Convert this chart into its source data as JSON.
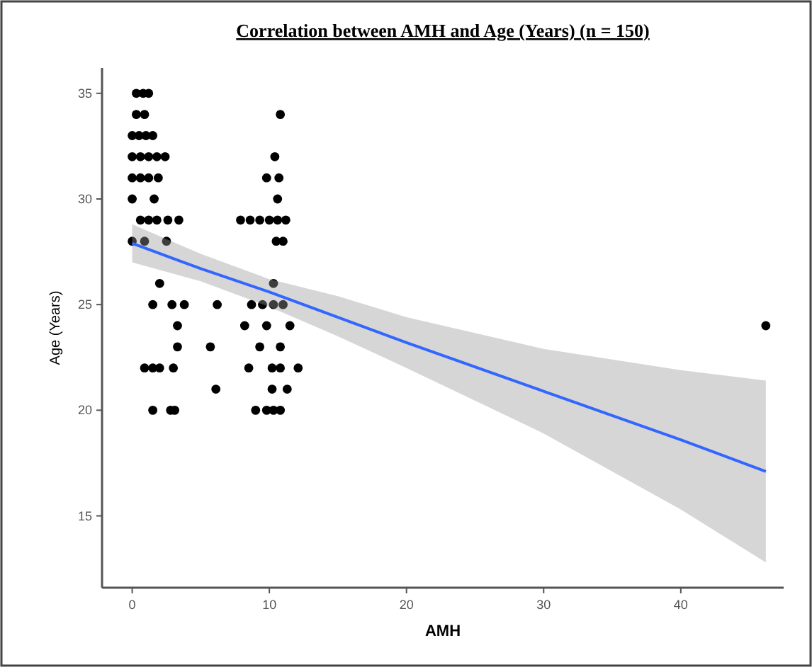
{
  "chart_data": {
    "type": "scatter",
    "title": "Correlation between AMH and Age (Years) (n = 150)",
    "xlabel": "AMH",
    "ylabel": "Age (Years)",
    "xlim": [
      -2.2,
      47.5
    ],
    "ylim": [
      11.6,
      36.2
    ],
    "xticks": [
      0,
      10,
      20,
      30,
      40
    ],
    "yticks": [
      15,
      20,
      25,
      30,
      35
    ],
    "grid": false,
    "marker": "circle",
    "series": [
      {
        "color": "#000000",
        "x": [
          0.3,
          0.8,
          1.2,
          0.3,
          0.9,
          10.8,
          0,
          0.5,
          1.0,
          1.5,
          0,
          0.6,
          1.2,
          1.8,
          2.4,
          10.4,
          0,
          0.6,
          1.2,
          1.9,
          9.8,
          10.7,
          0,
          1.6,
          10.6,
          0.6,
          1.2,
          1.8,
          2.6,
          3.4,
          7.9,
          8.6,
          9.3,
          10,
          10.6,
          11.2,
          0,
          0.9,
          2.5,
          10.5,
          11,
          2.0,
          10.3,
          1.5,
          2.9,
          3.8,
          6.2,
          8.7,
          9.5,
          10.3,
          11,
          3.3,
          8.2,
          9.8,
          11.5,
          3.3,
          5.7,
          9.3,
          10.8,
          0.9,
          1.5,
          2.0,
          3.0,
          8.5,
          10.2,
          10.8,
          12.1,
          6.1,
          10.2,
          11.3,
          1.5,
          2.8,
          3.1,
          9.0,
          9.8,
          10.3,
          10.8,
          46.2
        ],
        "values": [
          35,
          35,
          35,
          34,
          34,
          34,
          33,
          33,
          33,
          33,
          32,
          32,
          32,
          32,
          32,
          32,
          31,
          31,
          31,
          31,
          31,
          31,
          30,
          30,
          30,
          29,
          29,
          29,
          29,
          29,
          29,
          29,
          29,
          29,
          29,
          29,
          28,
          28,
          28,
          28,
          28,
          26,
          26,
          25,
          25,
          25,
          25,
          25,
          25,
          25,
          25,
          24,
          24,
          24,
          24,
          23,
          23,
          23,
          23,
          22,
          22,
          22,
          22,
          22,
          22,
          22,
          22,
          21,
          21,
          21,
          20,
          20,
          20,
          20,
          20,
          20,
          20,
          24
        ]
      },
      {
        "type": "line",
        "color": "#3366ff",
        "line_style": "solid",
        "marker": "none",
        "x": [
          0,
          5,
          10,
          15,
          20,
          30,
          40,
          46.2
        ],
        "values": [
          27.9,
          26.7,
          25.6,
          24.4,
          23.2,
          20.9,
          18.6,
          17.1
        ],
        "lower": [
          27.0,
          26.1,
          24.9,
          23.5,
          22.0,
          18.9,
          15.3,
          12.8
        ],
        "upper": [
          28.8,
          27.4,
          26.2,
          25.4,
          24.4,
          22.9,
          21.9,
          21.4
        ]
      }
    ]
  }
}
